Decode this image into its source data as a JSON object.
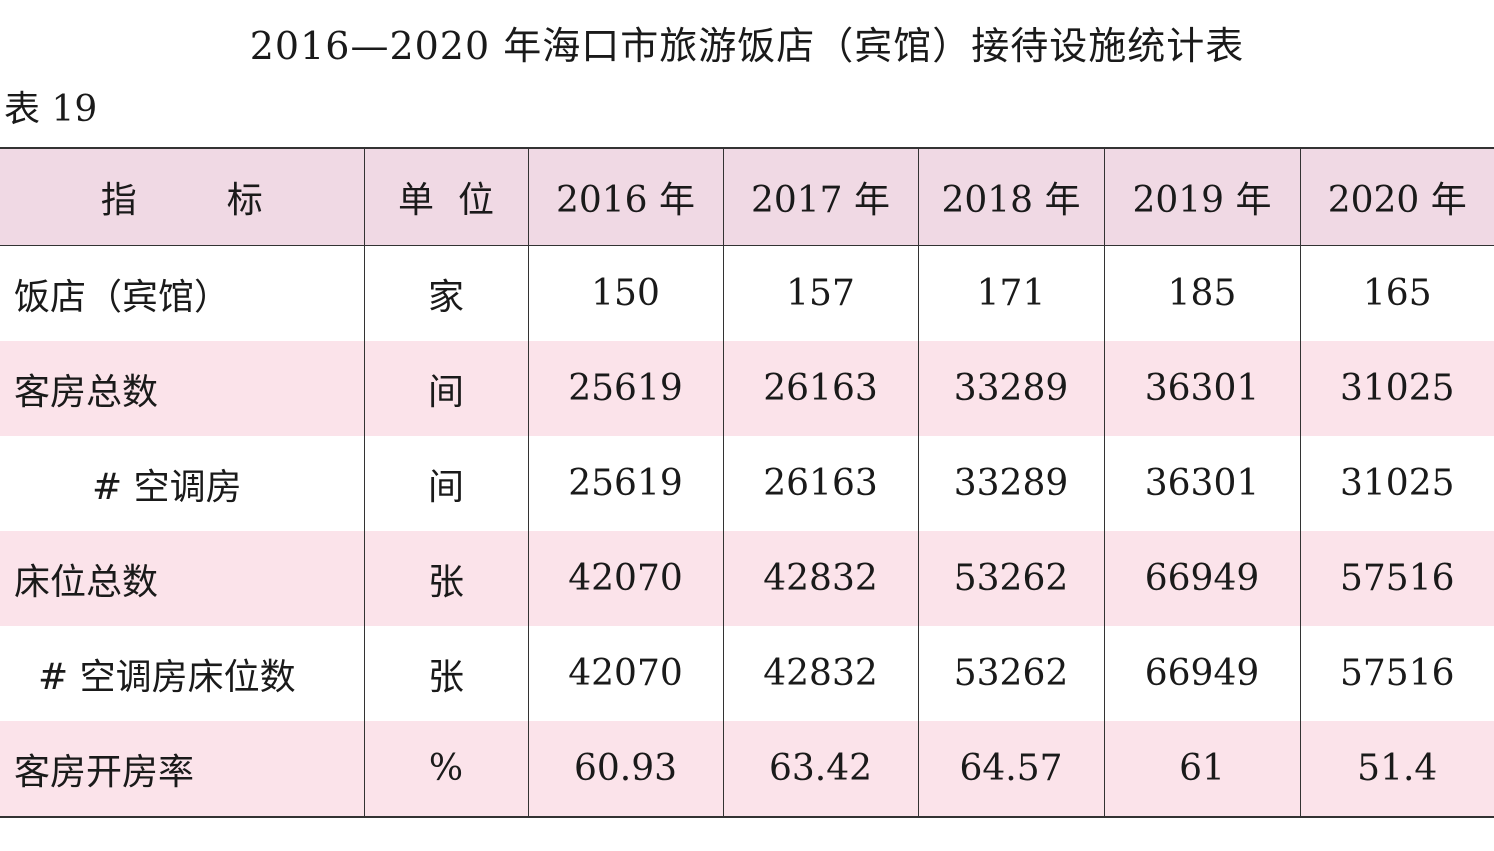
{
  "title": "2016—2020 年海口市旅游饭店（宾馆）接待设施统计表",
  "table_label": "表 19",
  "header": {
    "indicator": [
      "指",
      "标"
    ],
    "unit": [
      "单",
      "位"
    ],
    "years": [
      "2016 年",
      "2017 年",
      "2018 年",
      "2019 年",
      "2020 年"
    ]
  },
  "rows": [
    {
      "indicator": "饭店（宾馆）",
      "unit": "家",
      "values": [
        "150",
        "157",
        "171",
        "185",
        "165"
      ]
    },
    {
      "indicator": "客房总数",
      "unit": "间",
      "values": [
        "25619",
        "26163",
        "33289",
        "36301",
        "31025"
      ]
    },
    {
      "indicator": "# 空调房",
      "unit": "间",
      "values": [
        "25619",
        "26163",
        "33289",
        "36301",
        "31025"
      ]
    },
    {
      "indicator": "床位总数",
      "unit": "张",
      "values": [
        "42070",
        "42832",
        "53262",
        "66949",
        "57516"
      ]
    },
    {
      "indicator": "# 空调房床位数",
      "unit": "张",
      "values": [
        "42070",
        "42832",
        "53262",
        "66949",
        "57516"
      ]
    },
    {
      "indicator": "客房开房率",
      "unit": "%",
      "values": [
        "60.93",
        "63.42",
        "64.57",
        "61",
        "51.4"
      ]
    }
  ],
  "colors": {
    "header_bg": "#f0d9e4",
    "shaded_row_bg": "#fbe3ea",
    "border": "#333333"
  }
}
